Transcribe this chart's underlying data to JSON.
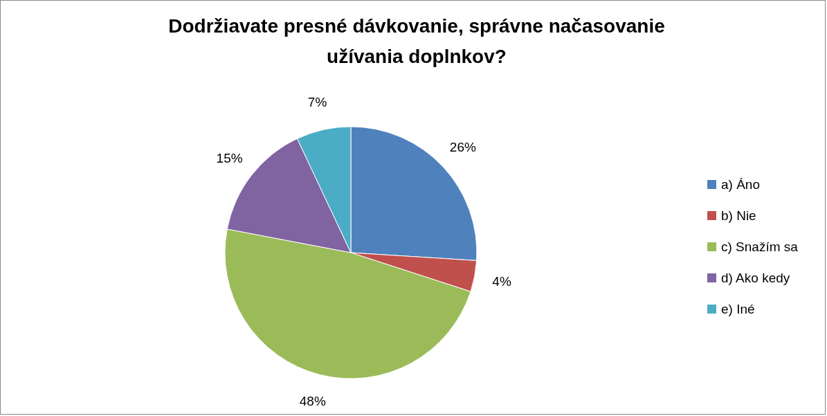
{
  "chart_data": {
    "type": "pie",
    "title": "Dodržiavate presné dávkovanie, správne načasovanie užívania doplnkov?",
    "categories": [
      "a) Áno",
      "b) Nie",
      "c) Snažím sa",
      "d) Ako kedy",
      "e) Iné"
    ],
    "values": [
      26,
      4,
      48,
      15,
      7
    ],
    "colors": [
      "#4f81bd",
      "#c0504d",
      "#9bbb59",
      "#8064a2",
      "#4bacc6"
    ],
    "value_labels": [
      "26%",
      "4%",
      "48%",
      "15%",
      "7%"
    ],
    "legend": "right"
  }
}
